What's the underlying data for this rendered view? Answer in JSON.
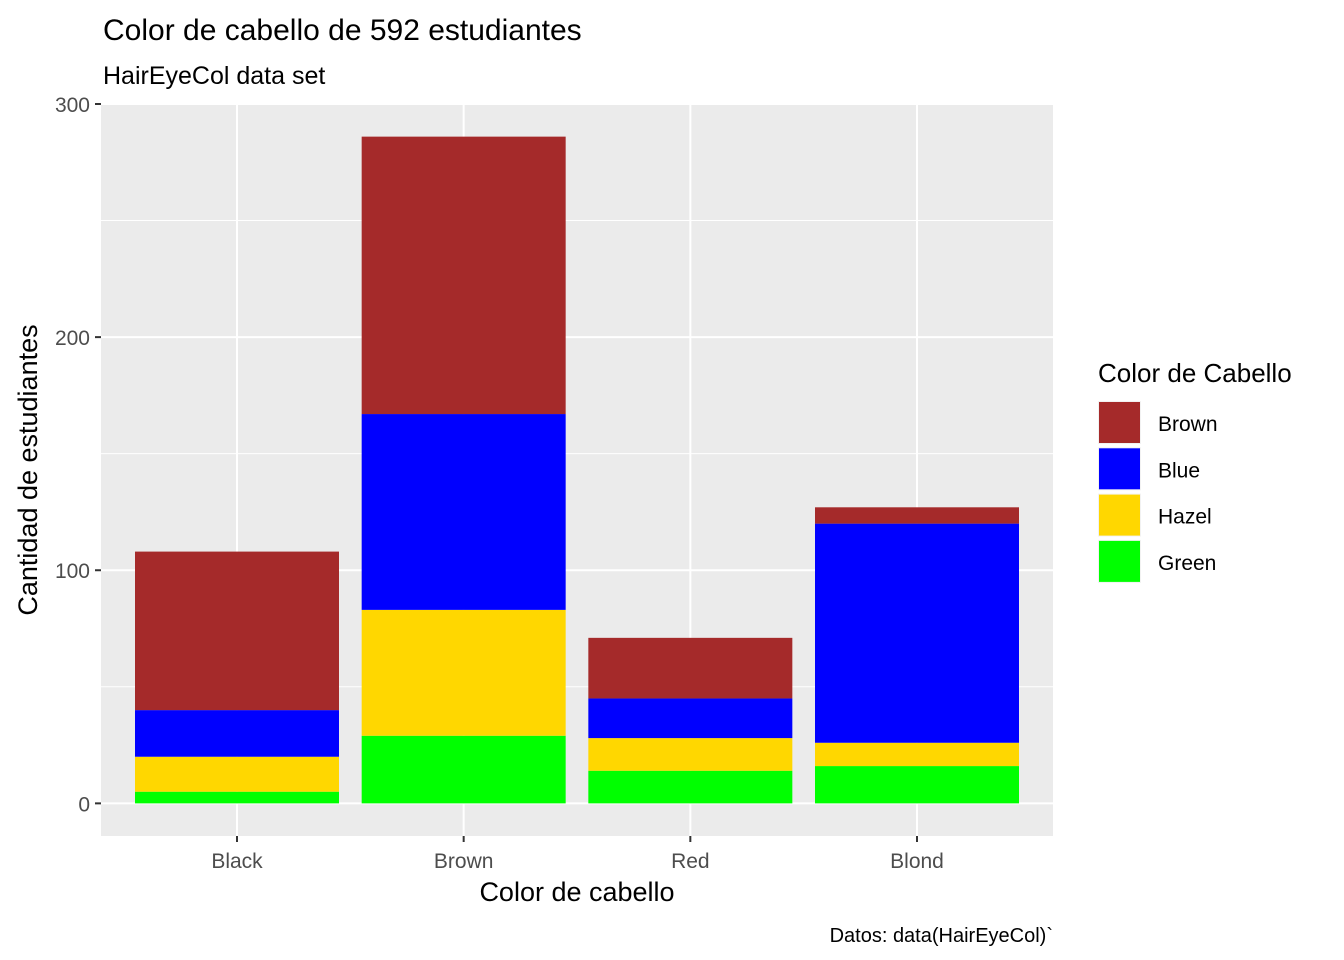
{
  "chart_data": {
    "type": "bar",
    "stacked": true,
    "title": "Color de cabello de 592 estudiantes",
    "subtitle": "HairEyeCol data set",
    "xlabel": "Color de cabello",
    "ylabel": "Cantidad de estudiantes",
    "caption": "Datos: data(HairEyeCol)`",
    "categories": [
      "Black",
      "Brown",
      "Red",
      "Blond"
    ],
    "ylim": [
      -14,
      300
    ],
    "y_ticks": [
      0,
      100,
      200,
      300
    ],
    "y_tick_labels": [
      "0",
      "100",
      "200",
      "300"
    ],
    "grid": true,
    "legend": {
      "title": "Color de Cabello",
      "placement": "right"
    },
    "series": [
      {
        "name": "Green",
        "color": "#00FF00",
        "values": [
          5,
          29,
          14,
          16
        ]
      },
      {
        "name": "Hazel",
        "color": "#FFD700",
        "values": [
          15,
          54,
          14,
          10
        ]
      },
      {
        "name": "Blue",
        "color": "#0000FF",
        "values": [
          20,
          84,
          17,
          94
        ]
      },
      {
        "name": "Brown",
        "color": "#A52A2A",
        "values": [
          68,
          119,
          26,
          7
        ]
      }
    ],
    "legend_order": [
      "Brown",
      "Blue",
      "Hazel",
      "Green"
    ],
    "panel_background": "#EBEBEB",
    "grid_color": "#FFFFFF"
  }
}
